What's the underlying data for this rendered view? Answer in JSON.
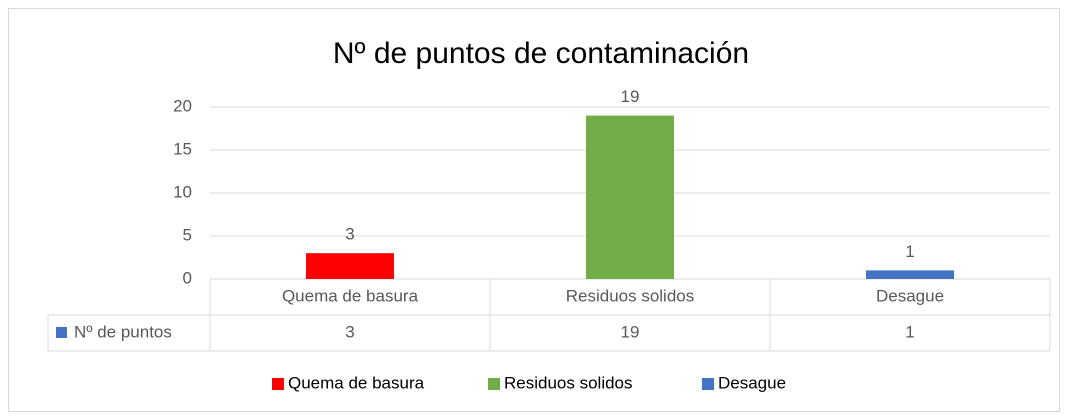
{
  "chart_data": {
    "type": "bar",
    "title": "Nº de puntos de contaminación",
    "categories": [
      "Quema de basura",
      "Residuos solidos",
      "Desague"
    ],
    "series": [
      {
        "name": "Nº de puntos",
        "color": "#4472c4",
        "values": [
          3,
          19,
          1
        ]
      }
    ],
    "point_colors": [
      "#ff0000",
      "#70ad47",
      "#4472c4"
    ],
    "ylim": [
      0,
      20
    ],
    "yticks": [
      0,
      5,
      10,
      15,
      20
    ],
    "grid": true,
    "legend": "bottom",
    "data_table": true
  }
}
